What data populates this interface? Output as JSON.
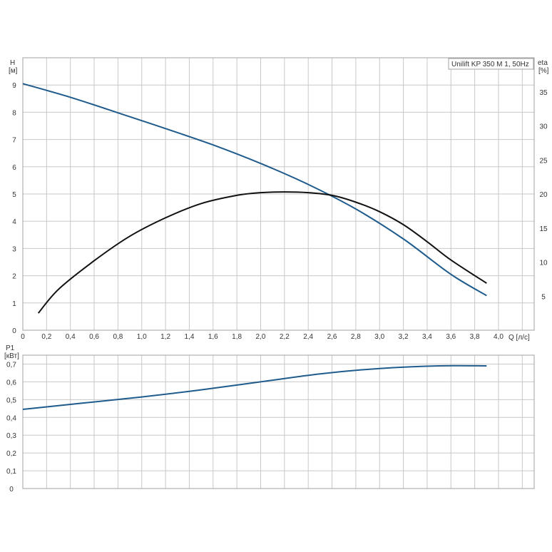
{
  "chart_data": [
    {
      "type": "line",
      "title": "Unilift KP 350 M 1, 50Hz",
      "xlabel": "Q [л/с]",
      "ylabel": "H",
      "ylabel_unit": "[м]",
      "y2label": "eta",
      "y2label_unit": "[%]",
      "xlim": [
        0,
        4.3
      ],
      "ylim": [
        0,
        10
      ],
      "y2lim": [
        0,
        40
      ],
      "x_ticks": [
        "0",
        "0,2",
        "0,4",
        "0,6",
        "0,8",
        "1,0",
        "1,2",
        "1,4",
        "1,6",
        "1,8",
        "2,0",
        "2,2",
        "2,4",
        "2,6",
        "2,8",
        "3,0",
        "3,2",
        "3,4",
        "3,6",
        "3,8",
        "4,0"
      ],
      "y_ticks": [
        "0",
        "1",
        "2",
        "3",
        "4",
        "5",
        "6",
        "7",
        "8",
        "9"
      ],
      "y2_ticks": [
        "5",
        "10",
        "15",
        "20",
        "25",
        "30",
        "35"
      ],
      "grid": true,
      "series": [
        {
          "axis": "left",
          "color": "#1f5b8c",
          "x": [
            0,
            0.4,
            0.8,
            1.2,
            1.6,
            2.0,
            2.4,
            2.8,
            3.2,
            3.6,
            3.9
          ],
          "y": [
            9.05,
            8.55,
            7.98,
            7.4,
            6.8,
            6.12,
            5.35,
            4.45,
            3.35,
            2.05,
            1.27
          ]
        },
        {
          "axis": "right",
          "color": "#111111",
          "x": [
            0.13,
            0.3,
            0.6,
            0.9,
            1.2,
            1.5,
            1.8,
            2.0,
            2.2,
            2.4,
            2.6,
            2.8,
            3.0,
            3.2,
            3.4,
            3.6,
            3.9
          ],
          "y": [
            2.5,
            6.0,
            10.2,
            13.8,
            16.5,
            18.6,
            19.8,
            20.2,
            20.3,
            20.2,
            19.8,
            18.8,
            17.4,
            15.5,
            13.0,
            10.3,
            6.9
          ]
        }
      ]
    },
    {
      "type": "line",
      "ylabel": "P1",
      "ylabel_unit": "[кВт]",
      "xlim": [
        0,
        4.3
      ],
      "ylim": [
        0,
        0.75
      ],
      "y_ticks": [
        "0",
        "0,1",
        "0,2",
        "0,3",
        "0,4",
        "0,5",
        "0,6",
        "0,7"
      ],
      "grid": true,
      "series": [
        {
          "axis": "left",
          "color": "#1f5b8c",
          "x": [
            0,
            0.5,
            1.0,
            1.5,
            2.0,
            2.5,
            3.0,
            3.5,
            3.9
          ],
          "y": [
            0.445,
            0.48,
            0.515,
            0.555,
            0.6,
            0.645,
            0.675,
            0.69,
            0.69
          ]
        }
      ]
    }
  ]
}
